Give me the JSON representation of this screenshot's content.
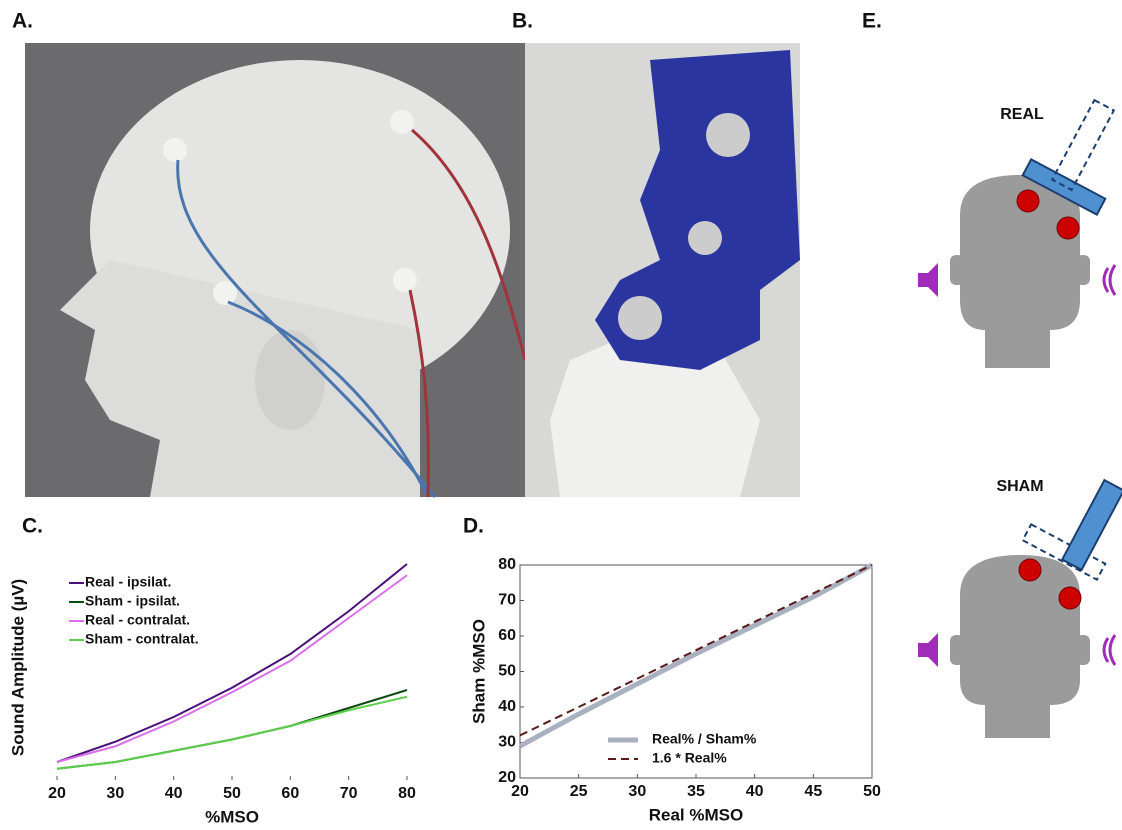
{
  "panel_labels": [
    "A.",
    "B.",
    "C.",
    "D.",
    "E."
  ],
  "diagram": {
    "real_label": "REAL",
    "sham_label": "SHAM"
  },
  "chart_data": [
    {
      "type": "line",
      "xlabel": "%MSO",
      "ylabel": "Sound Amplitude (µV)",
      "x": [
        20,
        30,
        40,
        50,
        60,
        70,
        80
      ],
      "xlim": [
        20,
        80
      ],
      "xticks": [
        20,
        30,
        40,
        50,
        60,
        70,
        80
      ],
      "ylim": [
        0,
        100
      ],
      "legend": "upper left",
      "frame": false,
      "series": [
        {
          "name": "Real - ipsilat.",
          "color": "#4b0f7a",
          "values": [
            8,
            17,
            28,
            41,
            56,
            75,
            96
          ]
        },
        {
          "name": "Sham - ipsilat.",
          "color": "#0c4a12",
          "values": [
            5,
            8,
            13,
            18,
            24,
            32,
            40
          ]
        },
        {
          "name": "Real - contralat.",
          "color": "#d86fe8",
          "values": [
            8,
            15,
            26,
            39,
            53,
            72,
            91
          ]
        },
        {
          "name": "Sham - contralat.",
          "color": "#5ccf4a",
          "values": [
            5,
            8,
            13,
            18,
            24,
            31,
            37
          ]
        }
      ]
    },
    {
      "type": "line",
      "xlabel": "Real %MSO",
      "ylabel": "Sham %MSO",
      "x": [
        20,
        25,
        30,
        35,
        40,
        45,
        50
      ],
      "xlim": [
        20,
        50
      ],
      "xticks": [
        20,
        25,
        30,
        35,
        40,
        45,
        50
      ],
      "ylim": [
        20,
        80
      ],
      "yticks": [
        20,
        30,
        40,
        50,
        60,
        70,
        80
      ],
      "legend": "lower right",
      "frame": true,
      "series": [
        {
          "name": "Real% / Sham%",
          "color": "#a9b0bf",
          "linewidth": 5,
          "values": [
            29,
            38,
            46.5,
            55,
            63,
            71,
            80
          ]
        },
        {
          "name": "1.6 * Real%",
          "color": "#5a1a1a",
          "linestyle": "dashed",
          "values": [
            32,
            40,
            48,
            56,
            64,
            72,
            80
          ]
        }
      ]
    }
  ]
}
